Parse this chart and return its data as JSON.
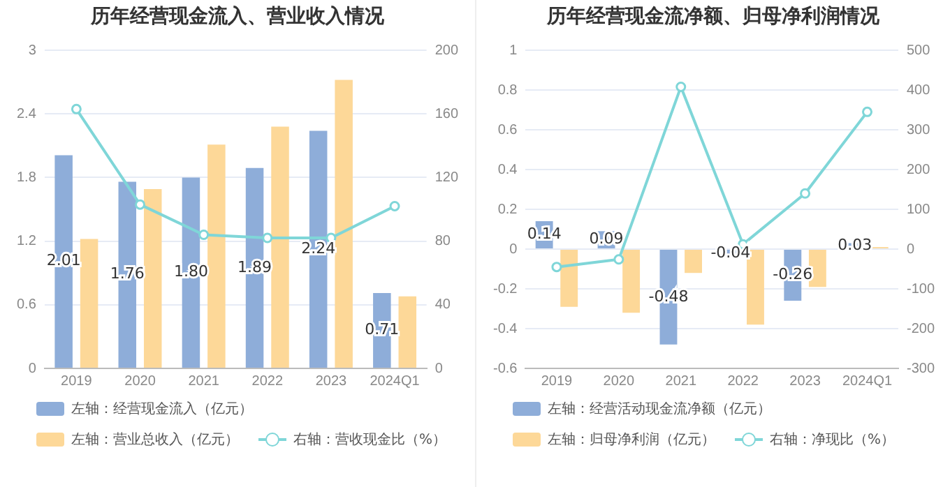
{
  "chart_data": [
    {
      "type": "bar",
      "title": "历年经营现金流入、营业收入情况",
      "categories": [
        "2019",
        "2020",
        "2021",
        "2022",
        "2023",
        "2024Q1"
      ],
      "series": [
        {
          "name": "左轴：经营现金流入（亿元）",
          "color": "#8eadd9",
          "values": [
            2.01,
            1.76,
            1.8,
            1.89,
            2.24,
            0.71
          ],
          "value_labels": [
            "2.01",
            "1.76",
            "1.80",
            "1.89",
            "2.24",
            "0.71"
          ]
        },
        {
          "name": "左轴：营业总收入（亿元）",
          "color": "#fdd898",
          "values": [
            1.22,
            1.69,
            2.11,
            2.28,
            2.72,
            0.68
          ]
        },
        {
          "name": "右轴：营收现金比（%）",
          "type": "line",
          "axis": "y2",
          "color": "#7fd6d8",
          "values": [
            163,
            103,
            84,
            82,
            82,
            102
          ]
        }
      ],
      "ylim": [
        0,
        3
      ],
      "yticks": [
        0,
        0.6,
        1.2,
        1.8,
        2.4,
        3
      ],
      "y2lim": [
        0,
        200
      ],
      "y2ticks": [
        0,
        40,
        80,
        120,
        160,
        200
      ],
      "grid": "y",
      "legend": "bottom",
      "marker": "circle"
    },
    {
      "type": "bar",
      "title": "历年经营现金流净额、归母净利润情况",
      "categories": [
        "2019",
        "2020",
        "2021",
        "2022",
        "2023",
        "2024Q1"
      ],
      "series": [
        {
          "name": "左轴：经营活动现金流净额（亿元）",
          "color": "#8eadd9",
          "values": [
            0.14,
            0.09,
            -0.48,
            -0.04,
            -0.26,
            0.03
          ],
          "value_labels": [
            "0.14",
            "0.09",
            "-0.48",
            "-0.04",
            "-0.26",
            "0.03"
          ]
        },
        {
          "name": "左轴：归母净利润（亿元）",
          "color": "#fdd898",
          "values": [
            -0.29,
            -0.32,
            -0.12,
            -0.38,
            -0.19,
            0.01
          ]
        },
        {
          "name": "右轴：净现比（%）",
          "type": "line",
          "axis": "y2",
          "color": "#7fd6d8",
          "values": [
            -45,
            -26,
            408,
            12,
            140,
            345
          ]
        }
      ],
      "ylim": [
        -0.6,
        1
      ],
      "yticks": [
        -0.6,
        -0.4,
        -0.2,
        0,
        0.2,
        0.4,
        0.6,
        0.8,
        1
      ],
      "y2lim": [
        -300,
        500
      ],
      "y2ticks": [
        -300,
        -200,
        -100,
        0,
        100,
        200,
        300,
        400,
        500
      ],
      "grid": "y",
      "legend": "bottom",
      "marker": "circle"
    }
  ]
}
